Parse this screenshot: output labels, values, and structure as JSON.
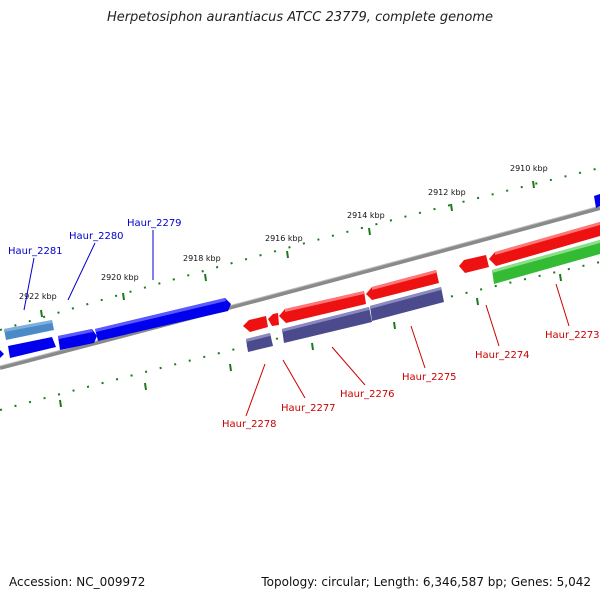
{
  "title": "Herpetosiphon aurantiacus ATCC 23779, complete genome",
  "footer": {
    "accession": "Accession: NC_009972",
    "summary": "Topology: circular; Length: 6,346,587 bp; Genes: 5,042"
  },
  "colors": {
    "backbone": "#8a8a8a",
    "ruler": "#1c7a1c",
    "forward_label": "#0000cc",
    "reverse_label": "#cc0000"
  },
  "ticks": [
    {
      "label": "2910 kbp"
    },
    {
      "label": "2912 kbp"
    },
    {
      "label": "2914 kbp"
    },
    {
      "label": "2916 kbp"
    },
    {
      "label": "2918 kbp"
    },
    {
      "label": "2920 kbp"
    },
    {
      "label": "2922 kbp"
    }
  ],
  "genes_forward": [
    {
      "label": "Haur_2281",
      "color": "#4a8ac6"
    },
    {
      "label": "Haur_2280",
      "color": "#0000ee"
    },
    {
      "label": "Haur_2279",
      "color": "#0000ee"
    }
  ],
  "genes_reverse": [
    {
      "label": "Haur_2278",
      "color": "#ee1111"
    },
    {
      "label": "Haur_2277",
      "color": "#ee1111"
    },
    {
      "label": "Haur_2276",
      "color": "#ee1111"
    },
    {
      "label": "Haur_2275",
      "color": "#ee1111"
    },
    {
      "label": "Haur_2274",
      "color": "#ee1111"
    },
    {
      "label": "Haur_2273",
      "color": "#ee1111"
    }
  ],
  "genes_other": [
    {
      "color": "#4a4a8c"
    },
    {
      "color": "#33bb33"
    }
  ]
}
